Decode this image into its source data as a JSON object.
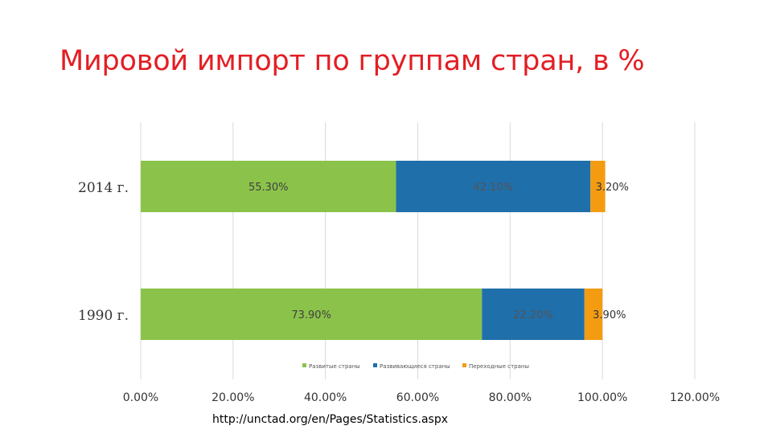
{
  "slide": {
    "title": "Мировой импорт по группам стран, в %",
    "source": "http://unctad.org/en/Pages/Statistics.aspx"
  },
  "chart_data": {
    "type": "bar",
    "orientation": "horizontal",
    "stacked": true,
    "categories": [
      "2014  г.",
      "1990  г."
    ],
    "series": [
      {
        "name": "Развитые страны",
        "values": [
          55.3,
          73.9
        ],
        "labels": [
          "55.30%",
          "73.90%"
        ],
        "color": "#8bc34a"
      },
      {
        "name": "Развивающиеся страны",
        "values": [
          42.1,
          22.2
        ],
        "labels": [
          "42.10%",
          "22.20%"
        ],
        "color": "#1f6fab"
      },
      {
        "name": "Переходные страны",
        "values": [
          3.2,
          3.9
        ],
        "labels": [
          "3.20%",
          "3.90%"
        ],
        "color": "#f39c12"
      }
    ],
    "xlim": [
      0,
      120
    ],
    "xticks": [
      0,
      20,
      40,
      60,
      80,
      100,
      120
    ],
    "xtick_labels": [
      "0.00%",
      "20.00%",
      "40.00%",
      "60.00%",
      "80.00%",
      "100.00%",
      "120.00%"
    ],
    "grid": true,
    "legend_position": "bottom"
  }
}
